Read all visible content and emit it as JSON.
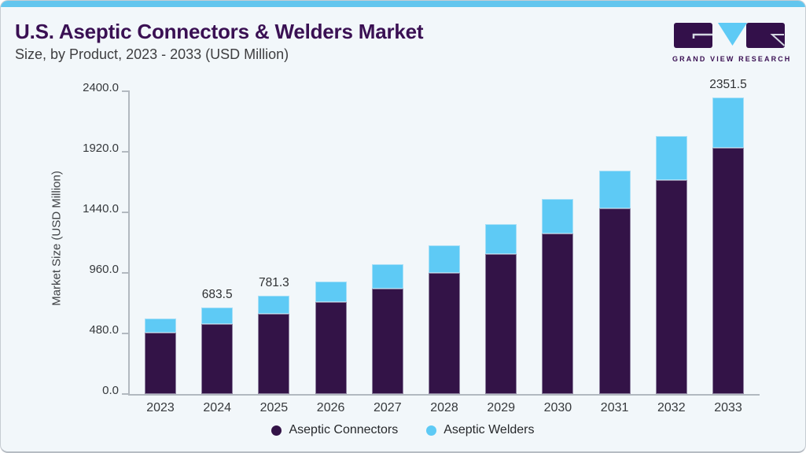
{
  "header": {
    "title": "U.S. Aseptic Connectors & Welders Market",
    "subtitle": "Size, by Product, 2023 - 2033 (USD Million)",
    "logo_text": "GRAND VIEW RESEARCH"
  },
  "colors": {
    "accent_bar": "#63c6ee",
    "title_text": "#3a1053",
    "connectors": "#331347",
    "welders": "#5ecaf5",
    "axis": "#b2b9c0",
    "card_background": "#f2f7fa"
  },
  "chart_data": {
    "type": "bar",
    "stacked": true,
    "title": "U.S. Aseptic Connectors & Welders Market Size, by Product, 2023 - 2033 (USD Million)",
    "categories": [
      "2023",
      "2024",
      "2025",
      "2026",
      "2027",
      "2028",
      "2029",
      "2030",
      "2031",
      "2032",
      "2033"
    ],
    "series": [
      {
        "name": "Aseptic Connectors",
        "color": "#331347",
        "values": [
          488,
          556,
          637,
          730,
          836,
          962,
          1109,
          1270,
          1469,
          1693,
          1954
        ]
      },
      {
        "name": "Aseptic Welders",
        "color": "#5ecaf5",
        "values": [
          112,
          127.5,
          144.3,
          164,
          190,
          215,
          236,
          274,
          302,
          354,
          397.5
        ]
      }
    ],
    "totals": [
      600,
      683.5,
      781.3,
      894,
      1026,
      1177,
      1345,
      1544,
      1771,
      2047,
      2351.5
    ],
    "data_labels": {
      "2024": "683.5",
      "2025": "781.3",
      "2033": "2351.5"
    },
    "xlabel": "",
    "ylabel": "Market Size (USD Million)",
    "ylim": [
      0,
      2400
    ],
    "ytick_step": 480,
    "yticks": [
      "2400.0",
      "1920.0",
      "1440.0",
      "960.0",
      "480.0",
      "0.0"
    ],
    "grid": false,
    "legend": [
      "Aseptic Connectors",
      "Aseptic Welders"
    ],
    "legend_position": "bottom"
  }
}
